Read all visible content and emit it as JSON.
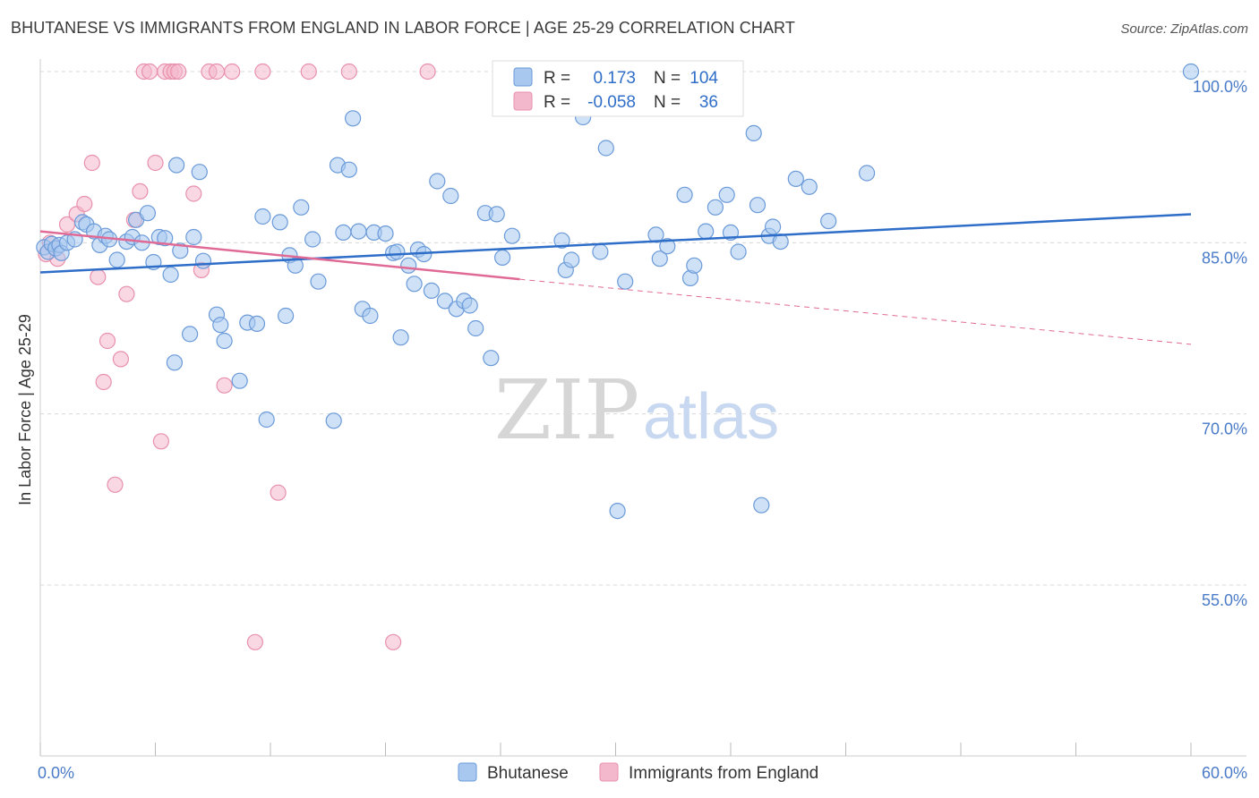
{
  "title": "BHUTANESE VS IMMIGRANTS FROM ENGLAND IN LABOR FORCE | AGE 25-29 CORRELATION CHART",
  "source": "Source: ZipAtlas.com",
  "watermark": {
    "zip": "ZIP",
    "atlas": "atlas"
  },
  "colors": {
    "blue_fill": "#a8c8f0",
    "blue_stroke": "#6a9ad8",
    "blue_line": "#2f6ec8",
    "pink_fill": "#f4b8cc",
    "pink_stroke": "#e890ac",
    "pink_line": "#e06a96",
    "tick_label": "#4a7bc8",
    "grid": "#d8d8d8"
  },
  "legend": {
    "rows": [
      {
        "r_label": "R =",
        "r_value": "0.173",
        "n_label": "N =",
        "n_value": "104"
      },
      {
        "r_label": "R =",
        "r_value": "-0.058",
        "n_label": "N =",
        "n_value": "36"
      }
    ]
  },
  "chart_data": {
    "type": "scatter",
    "title": "BHUTANESE VS IMMIGRANTS FROM ENGLAND IN LABOR FORCE | AGE 25-29 CORRELATION CHART",
    "xlabel": "",
    "ylabel": "In Labor Force | Age 25-29",
    "xlim": [
      0,
      60
    ],
    "ylim": [
      42,
      102
    ],
    "x_tick_labels": [
      "0.0%",
      "60.0%"
    ],
    "y_ticks": [
      55,
      70,
      85,
      100
    ],
    "y_tick_labels": [
      "55.0%",
      "70.0%",
      "85.0%",
      "100.0%"
    ],
    "grid": true,
    "legend_placement": "bottom-center",
    "series": [
      {
        "name": "Bhutanese",
        "color": "#a8c8f0",
        "trend": {
          "x": [
            0,
            60
          ],
          "y": [
            82.4,
            87.5
          ]
        },
        "points": [
          [
            0.2,
            84.6
          ],
          [
            0.4,
            84.2
          ],
          [
            0.6,
            84.9
          ],
          [
            0.8,
            84.5
          ],
          [
            1.0,
            84.8
          ],
          [
            1.1,
            84.1
          ],
          [
            1.4,
            85.0
          ],
          [
            1.8,
            85.3
          ],
          [
            2.2,
            86.8
          ],
          [
            2.4,
            86.6
          ],
          [
            2.8,
            86.0
          ],
          [
            3.1,
            84.8
          ],
          [
            3.4,
            85.6
          ],
          [
            3.6,
            85.3
          ],
          [
            4.0,
            83.5
          ],
          [
            4.5,
            85.1
          ],
          [
            4.8,
            85.5
          ],
          [
            5.0,
            87.0
          ],
          [
            5.3,
            85.0
          ],
          [
            5.6,
            87.6
          ],
          [
            5.9,
            83.3
          ],
          [
            6.2,
            85.5
          ],
          [
            6.5,
            85.4
          ],
          [
            6.8,
            82.2
          ],
          [
            7.0,
            74.5
          ],
          [
            7.1,
            91.8
          ],
          [
            7.3,
            84.3
          ],
          [
            7.8,
            77.0
          ],
          [
            8.0,
            85.5
          ],
          [
            8.3,
            91.2
          ],
          [
            8.5,
            83.4
          ],
          [
            9.2,
            78.7
          ],
          [
            9.4,
            77.8
          ],
          [
            9.6,
            76.4
          ],
          [
            10.4,
            72.9
          ],
          [
            10.8,
            78.0
          ],
          [
            11.3,
            77.9
          ],
          [
            11.6,
            87.3
          ],
          [
            11.8,
            69.5
          ],
          [
            12.5,
            86.8
          ],
          [
            12.8,
            78.6
          ],
          [
            13.0,
            83.9
          ],
          [
            13.3,
            83.0
          ],
          [
            13.6,
            88.1
          ],
          [
            14.2,
            85.3
          ],
          [
            14.5,
            81.6
          ],
          [
            15.3,
            69.4
          ],
          [
            15.5,
            91.8
          ],
          [
            15.8,
            85.9
          ],
          [
            16.1,
            91.4
          ],
          [
            16.3,
            95.9
          ],
          [
            16.6,
            86.0
          ],
          [
            16.8,
            79.2
          ],
          [
            17.2,
            78.6
          ],
          [
            17.4,
            85.9
          ],
          [
            18.0,
            85.8
          ],
          [
            18.4,
            84.1
          ],
          [
            18.6,
            84.2
          ],
          [
            18.8,
            76.7
          ],
          [
            19.2,
            83.0
          ],
          [
            19.5,
            81.4
          ],
          [
            19.7,
            84.4
          ],
          [
            20.0,
            84.0
          ],
          [
            20.4,
            80.8
          ],
          [
            20.7,
            90.4
          ],
          [
            21.1,
            79.9
          ],
          [
            21.4,
            89.1
          ],
          [
            21.7,
            79.2
          ],
          [
            22.1,
            79.9
          ],
          [
            22.4,
            79.5
          ],
          [
            22.7,
            77.5
          ],
          [
            23.2,
            87.6
          ],
          [
            23.5,
            74.9
          ],
          [
            23.8,
            87.5
          ],
          [
            24.1,
            83.7
          ],
          [
            24.6,
            85.6
          ],
          [
            27.2,
            85.2
          ],
          [
            27.4,
            82.6
          ],
          [
            27.7,
            83.5
          ],
          [
            28.3,
            96.0
          ],
          [
            29.2,
            84.2
          ],
          [
            29.5,
            93.3
          ],
          [
            30.1,
            61.5
          ],
          [
            30.5,
            81.6
          ],
          [
            32.1,
            85.7
          ],
          [
            32.3,
            83.6
          ],
          [
            32.7,
            84.7
          ],
          [
            33.6,
            89.2
          ],
          [
            33.9,
            81.9
          ],
          [
            34.1,
            83.0
          ],
          [
            34.7,
            86.0
          ],
          [
            35.2,
            88.1
          ],
          [
            35.8,
            89.2
          ],
          [
            36.0,
            85.9
          ],
          [
            36.4,
            84.2
          ],
          [
            37.2,
            94.6
          ],
          [
            37.4,
            88.3
          ],
          [
            37.6,
            62.0
          ],
          [
            38.0,
            85.6
          ],
          [
            38.2,
            86.4
          ],
          [
            38.6,
            85.1
          ],
          [
            39.4,
            90.6
          ],
          [
            40.1,
            89.9
          ],
          [
            41.1,
            86.9
          ],
          [
            43.1,
            91.1
          ],
          [
            60.0,
            100.0
          ]
        ]
      },
      {
        "name": "Immigrants from England",
        "color": "#f4b8cc",
        "trend": {
          "x": [
            0,
            25
          ],
          "y": [
            86.0,
            81.8
          ]
        },
        "trend_dashed": {
          "x": [
            25,
            60
          ],
          "y": [
            81.8,
            76.1
          ]
        },
        "points": [
          [
            0.3,
            84.0
          ],
          [
            0.5,
            85.0
          ],
          [
            0.9,
            83.6
          ],
          [
            1.4,
            86.6
          ],
          [
            1.9,
            87.5
          ],
          [
            2.3,
            88.4
          ],
          [
            2.7,
            92.0
          ],
          [
            3.0,
            82.0
          ],
          [
            3.3,
            72.8
          ],
          [
            3.5,
            76.4
          ],
          [
            3.9,
            63.8
          ],
          [
            4.2,
            74.8
          ],
          [
            4.5,
            80.5
          ],
          [
            4.9,
            87.0
          ],
          [
            5.2,
            89.5
          ],
          [
            5.4,
            100.0
          ],
          [
            5.7,
            100.0
          ],
          [
            6.0,
            92.0
          ],
          [
            6.3,
            67.6
          ],
          [
            6.5,
            100.0
          ],
          [
            6.8,
            100.0
          ],
          [
            7.0,
            100.0
          ],
          [
            7.2,
            100.0
          ],
          [
            8.0,
            89.3
          ],
          [
            8.4,
            82.6
          ],
          [
            8.8,
            100.0
          ],
          [
            9.2,
            100.0
          ],
          [
            9.6,
            72.5
          ],
          [
            10.0,
            100.0
          ],
          [
            11.2,
            50.0
          ],
          [
            11.6,
            100.0
          ],
          [
            12.4,
            63.1
          ],
          [
            14.0,
            100.0
          ],
          [
            16.1,
            100.0
          ],
          [
            18.4,
            50.0
          ],
          [
            20.2,
            100.0
          ]
        ]
      }
    ]
  }
}
